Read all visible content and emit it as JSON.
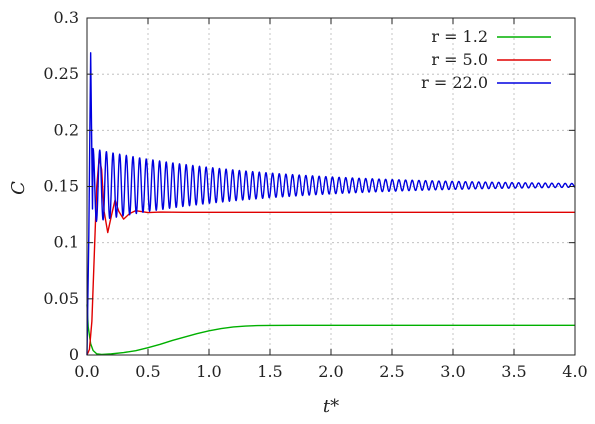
{
  "chart_data": {
    "type": "line",
    "title": "",
    "xlabel": "t*",
    "ylabel": "C",
    "xlim": [
      0,
      4
    ],
    "ylim": [
      0,
      0.3
    ],
    "xticks": [
      "0.0",
      "0.5",
      "1.0",
      "1.5",
      "2.0",
      "2.5",
      "3.0",
      "3.5",
      "4.0"
    ],
    "yticks": [
      "0",
      "0.05",
      "0.1",
      "0.15",
      "0.2",
      "0.25",
      "0.3"
    ],
    "grid": true,
    "legend_position": "top-right",
    "series": [
      {
        "name": "r = 1.2",
        "color": "#00b000",
        "x": [
          0,
          0.01,
          0.03,
          0.05,
          0.08,
          0.12,
          0.2,
          0.3,
          0.4,
          0.5,
          0.6,
          0.7,
          0.8,
          0.9,
          1.0,
          1.1,
          1.2,
          1.3,
          1.4,
          1.5,
          1.7,
          2.0,
          2.5,
          3.0,
          3.5,
          4.0
        ],
        "y": [
          0.045,
          0.025,
          0.01,
          0.004,
          0.001,
          0.0005,
          0.001,
          0.0022,
          0.0038,
          0.0065,
          0.0095,
          0.013,
          0.016,
          0.019,
          0.0215,
          0.0235,
          0.025,
          0.0258,
          0.0262,
          0.0263,
          0.0264,
          0.0264,
          0.0264,
          0.0264,
          0.0264,
          0.0264
        ]
      },
      {
        "name": "r = 5.0",
        "color": "#e00000",
        "x": [
          0,
          0.02,
          0.04,
          0.06,
          0.08,
          0.1,
          0.12,
          0.14,
          0.17,
          0.2,
          0.23,
          0.26,
          0.3,
          0.35,
          0.4,
          0.5,
          0.6,
          0.8,
          1.0,
          1.5,
          2.0,
          2.5,
          3.0,
          3.5,
          4.0
        ],
        "y": [
          0,
          0.005,
          0.03,
          0.09,
          0.15,
          0.176,
          0.165,
          0.128,
          0.109,
          0.124,
          0.138,
          0.128,
          0.121,
          0.126,
          0.1285,
          0.1268,
          0.1272,
          0.127,
          0.127,
          0.127,
          0.127,
          0.127,
          0.127,
          0.127,
          0.127
        ]
      },
      {
        "name": "r = 22.0",
        "color": "#0000e0",
        "model": {
          "mean": 0.151,
          "initial_amplitude": 0.034,
          "decay_rate": 0.75,
          "period": 0.0545,
          "peak": 0.269,
          "peak_t": 0.03
        }
      }
    ]
  }
}
